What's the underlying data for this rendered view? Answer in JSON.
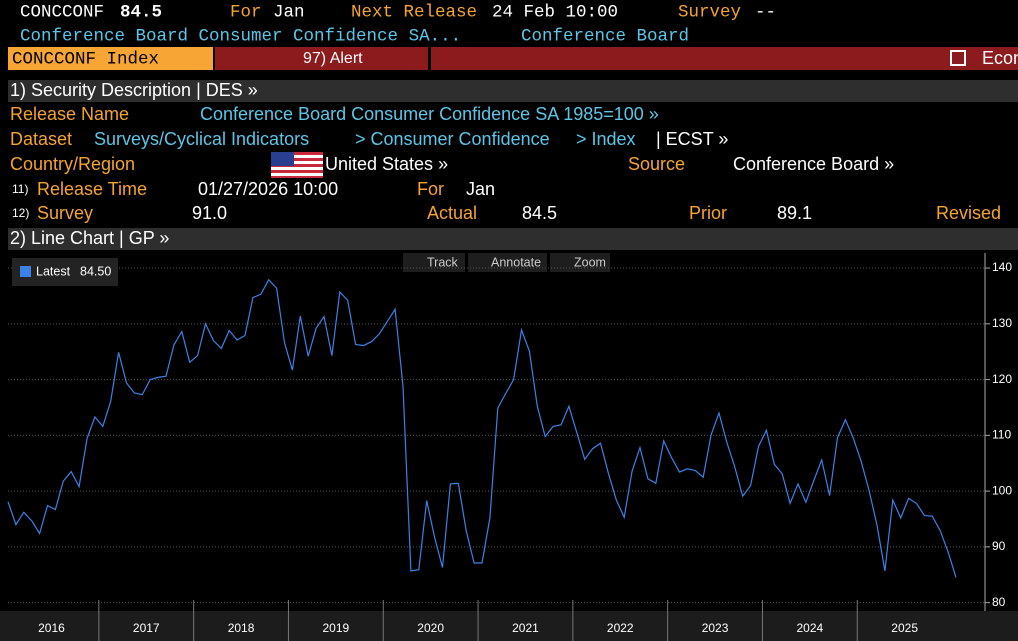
{
  "header": {
    "ticker": "CONCCONF",
    "value": "84.5",
    "for_label": "For",
    "for_value": "Jan",
    "next_label": "Next Release",
    "next_value": "24 Feb 10:00",
    "survey_label": "Survey",
    "survey_value": "--",
    "name": "Conference Board Consumer Confidence SA...",
    "source": "Conference Board"
  },
  "tabs": [
    "CONCCONF Index",
    "97) Alert",
    "Econ"
  ],
  "section1": "1) Security Description  | DES  »",
  "fields": {
    "release_name_label": "Release Name",
    "release_name": "Conference Board Consumer Confidence SA 1985=100 »",
    "dataset_label": "Dataset",
    "dataset": [
      "Surveys/Cyclical Indicators",
      "> Consumer Confidence",
      "> Index",
      "| ECST »"
    ],
    "country_label": "Country/Region",
    "country": "United States »",
    "source_label": "Source",
    "source": "Conference Board »",
    "release_time_num": "11)",
    "release_time_label": "Release Time",
    "release_time": "01/27/2026 10:00",
    "for_label": "For",
    "for_value": "Jan",
    "survey_num": "12)",
    "survey_label": "Survey",
    "survey": "91.0",
    "actual_label": "Actual",
    "actual": "84.5",
    "prior_label": "Prior",
    "prior": "89.1",
    "revised_label": "Revised"
  },
  "section2": "2) Line Chart | GP »",
  "toolbar": [
    "Track",
    "Annotate",
    "Zoom"
  ],
  "chart_data": {
    "type": "line",
    "x_labels": [
      "2016",
      "2017",
      "2018",
      "2019",
      "2020",
      "2021",
      "2022",
      "2023",
      "2024",
      "2025"
    ],
    "series": [
      {
        "name": "Latest",
        "last_label": "84.50",
        "color": "#3b82e8",
        "values": [
          98.1,
          94.0,
          96.2,
          94.7,
          92.4,
          97.4,
          96.7,
          101.8,
          103.5,
          100.8,
          109.4,
          113.3,
          111.6,
          116.1,
          124.9,
          119.4,
          117.6,
          117.3,
          120.0,
          120.4,
          120.6,
          126.2,
          128.6,
          123.1,
          124.3,
          130.0,
          127.0,
          125.6,
          128.8,
          127.1,
          127.9,
          134.7,
          135.3,
          137.9,
          136.4,
          126.6,
          121.7,
          131.4,
          124.2,
          129.2,
          131.3,
          124.3,
          135.7,
          134.2,
          126.3,
          126.1,
          126.8,
          128.2,
          130.4,
          132.6,
          118.8,
          85.7,
          85.9,
          98.3,
          91.7,
          86.3,
          101.3,
          101.4,
          92.9,
          87.1,
          87.1,
          95.2,
          114.9,
          117.5,
          120.0,
          128.9,
          125.1,
          115.2,
          109.8,
          111.6,
          111.9,
          115.2,
          110.5,
          105.7,
          107.6,
          108.6,
          103.2,
          98.4,
          95.3,
          103.6,
          107.8,
          102.2,
          101.4,
          109.0,
          106.0,
          103.4,
          104.0,
          103.7,
          102.5,
          110.1,
          114.0,
          108.7,
          104.3,
          99.1,
          101.0,
          108.0,
          110.9,
          104.8,
          103.1,
          97.8,
          101.3,
          98.0,
          101.9,
          105.6,
          99.2,
          109.6,
          112.8,
          109.5,
          105.3,
          100.1,
          93.9,
          85.7,
          98.4,
          95.2,
          98.7,
          97.8,
          95.6,
          95.5,
          92.9,
          89.1,
          84.5
        ]
      }
    ],
    "ylim": [
      78.5,
      142.7
    ],
    "yticks": [
      80,
      90,
      100,
      110,
      120,
      130,
      140
    ],
    "grid": true
  }
}
